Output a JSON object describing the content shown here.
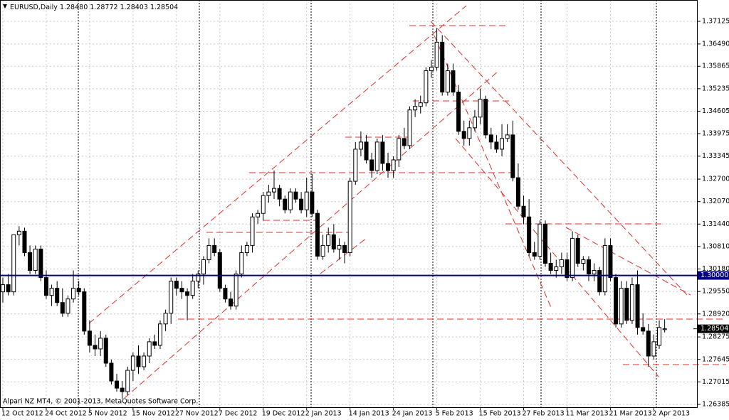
{
  "chart_data": {
    "type": "candlestick",
    "symbol": "EURUSD,Daily",
    "last_bar_labels": [
      "1.28480",
      "1.28772",
      "1.28403",
      "1.28504"
    ],
    "footer": "Alpari NZ MT4, © 2001-2013, MetaQuotes Software Corp.",
    "categories": [
      "12 Oct 2012",
      null,
      null,
      null,
      null,
      null,
      null,
      null,
      "24 Oct 2012",
      null,
      null,
      null,
      null,
      null,
      null,
      null,
      "5 Nov 2012",
      null,
      null,
      null,
      null,
      null,
      null,
      null,
      "15 Nov 2012",
      null,
      null,
      null,
      null,
      null,
      null,
      null,
      "27 Nov 2012",
      null,
      null,
      null,
      null,
      null,
      null,
      null,
      "7 Dec 2012",
      null,
      null,
      null,
      null,
      null,
      null,
      null,
      "19 Dec 2012",
      null,
      null,
      null,
      null,
      null,
      null,
      null,
      "2 Jan 2013",
      null,
      null,
      null,
      null,
      null,
      null,
      null,
      "14 Jan 2013",
      null,
      null,
      null,
      null,
      null,
      null,
      null,
      "24 Jan 2013",
      null,
      null,
      null,
      null,
      null,
      null,
      null,
      "5 Feb 2013",
      null,
      null,
      null,
      null,
      null,
      null,
      null,
      "15 Feb 2013",
      null,
      null,
      null,
      null,
      null,
      null,
      null,
      "27 Feb 2013",
      null,
      null,
      null,
      null,
      null,
      null,
      null,
      "11 Mar 2013",
      null,
      null,
      null,
      null,
      null,
      null,
      null,
      "21 Mar 2013",
      null,
      null,
      null,
      null,
      null,
      null,
      null,
      "2 Apr 2013",
      null,
      null
    ],
    "open": [
      1.2954,
      1.2974,
      1.2954,
      1.3114,
      1.3124,
      1.3064,
      1.3014,
      1.3074,
      1.2994,
      1.2944,
      1.2964,
      1.2924,
      1.2894,
      1.2934,
      1.2964,
      1.2954,
      1.2844,
      1.2804,
      1.2794,
      1.2824,
      1.2754,
      1.2704,
      1.2684,
      1.2674,
      1.2734,
      1.2774,
      1.2744,
      1.2774,
      1.2814,
      1.2804,
      1.2864,
      1.2894,
      1.2984,
      1.2964,
      1.2954,
      1.2944,
      1.2984,
      1.3004,
      1.3044,
      1.3084,
      1.3064,
      1.2964,
      1.2934,
      1.2914,
      1.3004,
      1.3064,
      1.3084,
      1.3164,
      1.3174,
      1.3224,
      1.3234,
      1.3244,
      1.3214,
      1.3184,
      1.3234,
      1.3214,
      1.3184,
      1.3234,
      1.3174,
      1.3054,
      1.3084,
      1.3114,
      1.3074,
      1.3084,
      1.3064,
      1.3264,
      1.3354,
      1.3374,
      1.3324,
      1.3294,
      1.3374,
      1.3314,
      1.3294,
      1.3324,
      1.3384,
      1.3364,
      1.3464,
      1.3474,
      1.3484,
      1.3574,
      1.3584,
      1.3654,
      1.3514,
      1.3574,
      1.3514,
      1.3404,
      1.3384,
      1.3414,
      1.3444,
      1.3494,
      1.3394,
      1.3374,
      1.3354,
      1.3384,
      1.3394,
      1.3274,
      1.3194,
      1.3164,
      1.3064,
      1.3054,
      1.3144,
      1.3034,
      1.3014,
      1.3024,
      1.3044,
      1.2994,
      1.3104,
      1.3034,
      1.3044,
      1.3004,
      1.3014,
      1.2954,
      1.3084,
      1.2994,
      1.2864,
      1.2964,
      1.2874,
      1.2974,
      1.2854,
      1.2844,
      1.2774,
      1.2804,
      1.2848
    ],
    "high": [
      1.2994,
      1.3004,
      1.3114,
      1.3138,
      1.3134,
      1.3084,
      1.3084,
      1.3084,
      1.3014,
      1.2974,
      1.2984,
      1.2964,
      1.2944,
      1.3014,
      1.2984,
      1.2964,
      1.2874,
      1.2834,
      1.2844,
      1.2834,
      1.2764,
      1.2724,
      1.2704,
      1.2744,
      1.2784,
      1.2804,
      1.2784,
      1.2824,
      1.2834,
      1.2874,
      1.2904,
      1.2994,
      1.2994,
      1.2984,
      1.2964,
      1.3004,
      1.3014,
      1.3054,
      1.3104,
      1.3104,
      1.3074,
      1.2974,
      1.2954,
      1.3014,
      1.3084,
      1.3094,
      1.3174,
      1.3184,
      1.3234,
      1.3254,
      1.3294,
      1.3254,
      1.3224,
      1.3244,
      1.3244,
      1.3234,
      1.3274,
      1.3284,
      1.3184,
      1.3114,
      1.3134,
      1.3144,
      1.3104,
      1.3094,
      1.3274,
      1.3374,
      1.3404,
      1.3394,
      1.3344,
      1.3384,
      1.3394,
      1.3344,
      1.3334,
      1.3394,
      1.3414,
      1.3474,
      1.3494,
      1.3504,
      1.3584,
      1.3604,
      1.3694,
      1.3674,
      1.3594,
      1.3594,
      1.3534,
      1.3434,
      1.3434,
      1.3464,
      1.3524,
      1.3504,
      1.3414,
      1.3394,
      1.3424,
      1.3424,
      1.3434,
      1.3314,
      1.3224,
      1.3214,
      1.3094,
      1.3154,
      1.3154,
      1.3064,
      1.3044,
      1.3064,
      1.3064,
      1.3124,
      1.3114,
      1.3054,
      1.3054,
      1.3034,
      1.3024,
      1.3104,
      1.3104,
      1.3004,
      1.2984,
      1.2984,
      1.2994,
      1.3014,
      1.2894,
      1.2864,
      1.2834,
      1.2874,
      1.28772
    ],
    "low": [
      1.2924,
      1.2944,
      1.2944,
      1.3084,
      1.3054,
      1.3004,
      1.3004,
      1.2984,
      1.2934,
      1.2914,
      1.2914,
      1.2884,
      1.2884,
      1.2924,
      1.2944,
      1.2834,
      1.2784,
      1.2774,
      1.2774,
      1.2744,
      1.2694,
      1.2674,
      1.2654,
      1.2664,
      1.2704,
      1.2724,
      1.2734,
      1.2754,
      1.2794,
      1.2794,
      1.2844,
      1.2864,
      1.2944,
      1.2934,
      1.2874,
      1.2934,
      1.2964,
      1.2974,
      1.3034,
      1.3054,
      1.2954,
      1.2924,
      1.2904,
      1.2904,
      1.2994,
      1.3054,
      1.3064,
      1.3144,
      1.3154,
      1.3204,
      1.3214,
      1.3194,
      1.3174,
      1.3174,
      1.3204,
      1.3174,
      1.3164,
      1.3164,
      1.3044,
      1.3044,
      1.3064,
      1.3064,
      1.3044,
      1.3034,
      1.3054,
      1.3254,
      1.3334,
      1.3314,
      1.3274,
      1.3284,
      1.3294,
      1.3274,
      1.3274,
      1.3304,
      1.3354,
      1.3354,
      1.3444,
      1.3454,
      1.3474,
      1.3554,
      1.3574,
      1.3504,
      1.3504,
      1.3504,
      1.3394,
      1.3364,
      1.3364,
      1.3404,
      1.3424,
      1.3384,
      1.3354,
      1.3344,
      1.3334,
      1.3374,
      1.3264,
      1.3184,
      1.3144,
      1.3054,
      1.3044,
      1.3044,
      1.3024,
      1.3004,
      1.2994,
      1.3004,
      1.2984,
      1.2984,
      1.3024,
      1.3014,
      1.2984,
      1.2984,
      1.2944,
      1.2944,
      1.2984,
      1.2854,
      1.2854,
      1.2864,
      1.2864,
      1.2834,
      1.2834,
      1.2744,
      1.2764,
      1.2794,
      1.28403
    ],
    "close": [
      1.2974,
      1.2954,
      1.3114,
      1.3124,
      1.3064,
      1.3014,
      1.3074,
      1.2994,
      1.2944,
      1.2964,
      1.2924,
      1.2894,
      1.2934,
      1.2964,
      1.2954,
      1.2844,
      1.2804,
      1.2794,
      1.2824,
      1.2754,
      1.2704,
      1.2684,
      1.2674,
      1.2734,
      1.2774,
      1.2744,
      1.2774,
      1.2814,
      1.2804,
      1.2864,
      1.2894,
      1.2984,
      1.2964,
      1.2954,
      1.2944,
      1.2984,
      1.3004,
      1.3044,
      1.3084,
      1.3064,
      1.2964,
      1.2934,
      1.2914,
      1.3004,
      1.3064,
      1.3084,
      1.3164,
      1.3174,
      1.3224,
      1.3234,
      1.3244,
      1.3214,
      1.3184,
      1.3234,
      1.3214,
      1.3184,
      1.3234,
      1.3174,
      1.3054,
      1.3084,
      1.3114,
      1.3074,
      1.3084,
      1.3064,
      1.3264,
      1.3354,
      1.3374,
      1.3324,
      1.3294,
      1.3374,
      1.3314,
      1.3294,
      1.3324,
      1.3384,
      1.3364,
      1.3464,
      1.3474,
      1.3484,
      1.3574,
      1.3584,
      1.3654,
      1.3514,
      1.3574,
      1.3514,
      1.3404,
      1.3384,
      1.3414,
      1.3444,
      1.3494,
      1.3394,
      1.3374,
      1.3354,
      1.3384,
      1.3394,
      1.3274,
      1.3194,
      1.3164,
      1.3064,
      1.3054,
      1.3144,
      1.3034,
      1.3014,
      1.3024,
      1.3044,
      1.2994,
      1.3104,
      1.3034,
      1.3044,
      1.3004,
      1.3014,
      1.2954,
      1.3084,
      1.2994,
      1.2864,
      1.2964,
      1.2874,
      1.2974,
      1.2854,
      1.2844,
      1.2774,
      1.2814,
      1.2854,
      1.28504
    ],
    "ylim": [
      1.26305,
      1.37723
    ],
    "yticks": [
      1.37125,
      {
        "value": 1.3649,
        "label": "1.36490"
      },
      1.35865,
      1.35235,
      1.34605,
      1.33975,
      1.33345,
      {
        "value": 1.327,
        "label": "1.32700"
      },
      {
        "value": 1.3207,
        "label": "1.32070"
      },
      {
        "value": 1.3144,
        "label": "1.31440"
      },
      {
        "value": 1.3081,
        "label": "1.30810"
      },
      {
        "value": 1.3018,
        "label": "1.30180"
      },
      {
        "value": 1.2955,
        "label": "1.29550"
      },
      {
        "value": 1.2892,
        "label": "1.28920"
      },
      1.28275,
      1.27645,
      1.27015,
      1.26385
    ],
    "hline": {
      "value": 1.3,
      "label": "1.30000",
      "color": "#000080"
    },
    "last_price": {
      "value": 1.28504,
      "label": "1.28504"
    },
    "grid": true
  }
}
